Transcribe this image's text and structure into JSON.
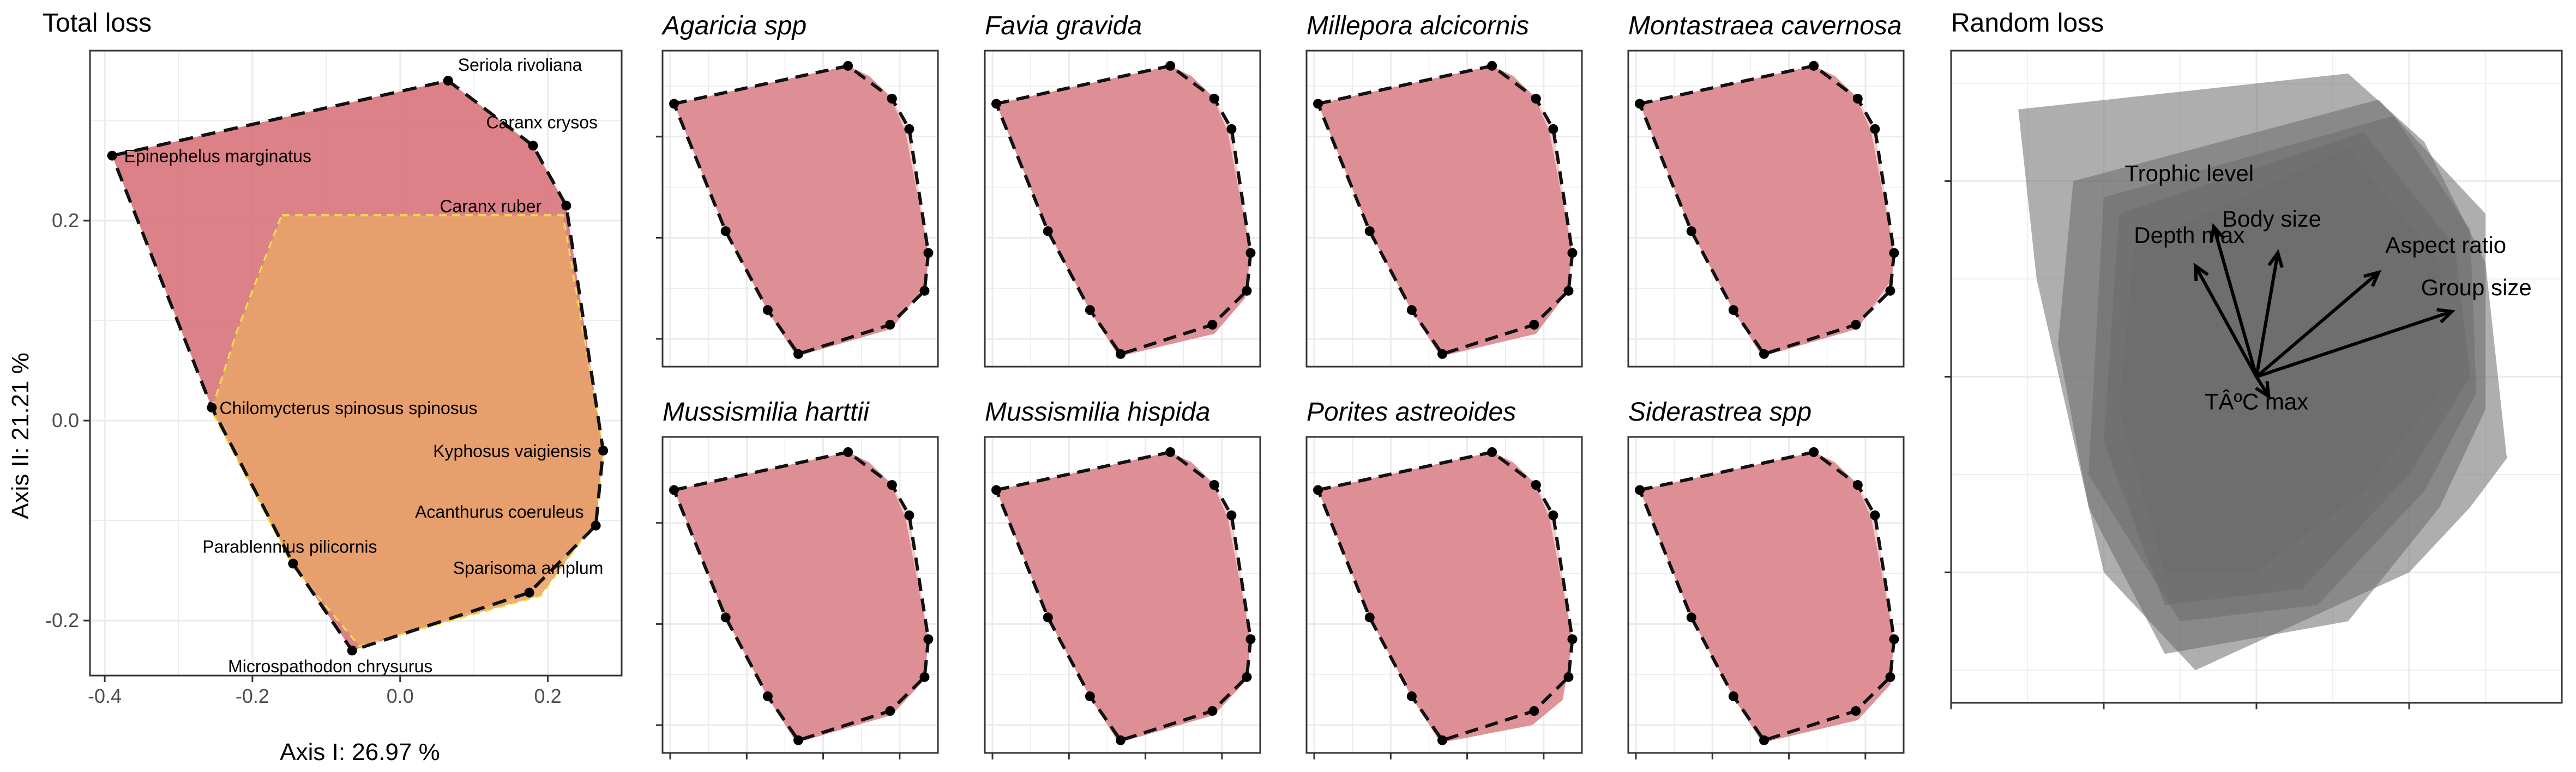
{
  "colors": {
    "total_fill": "#d9737b",
    "overlay_fill": "#e69a6e",
    "overlay_edge": "#f2e84a",
    "small_fill": "#db8a90",
    "random_fill": "#6b6b6b",
    "grid": "#ebebeb",
    "panel_border": "#333333"
  },
  "chart_data": [
    {
      "type": "scatter",
      "title": "Total loss",
      "xlabel": "Axis I: 26.97 %",
      "ylabel": "Axis II: 21.21 %",
      "xlim": [
        -0.42,
        0.3
      ],
      "ylim": [
        -0.255,
        0.37
      ],
      "x_ticks": [
        -0.4,
        -0.2,
        0.0,
        0.2
      ],
      "x_tick_labels": [
        "-0.4",
        "-0.2",
        "0.0",
        "0.2"
      ],
      "y_ticks": [
        -0.2,
        0.0,
        0.2
      ],
      "y_tick_labels": [
        "-0.2",
        "0.0",
        "0.2"
      ],
      "grid": true,
      "hull": [
        [
          -0.39,
          0.265
        ],
        [
          0.065,
          0.34
        ],
        [
          0.18,
          0.275
        ],
        [
          0.225,
          0.215
        ],
        [
          0.275,
          -0.03
        ],
        [
          0.265,
          -0.105
        ],
        [
          0.175,
          -0.172
        ],
        [
          -0.065,
          -0.23
        ],
        [
          -0.145,
          -0.143
        ],
        [
          -0.255,
          0.013
        ]
      ],
      "overlay_hull": [
        [
          -0.16,
          0.205
        ],
        [
          0.22,
          0.205
        ],
        [
          0.275,
          -0.03
        ],
        [
          0.265,
          -0.1
        ],
        [
          0.19,
          -0.175
        ],
        [
          -0.055,
          -0.225
        ],
        [
          -0.145,
          -0.145
        ],
        [
          -0.255,
          0.01
        ],
        [
          -0.22,
          0.09
        ]
      ],
      "species": [
        {
          "name": "Seriola rivoliana",
          "x": 0.065,
          "y": 0.34
        },
        {
          "name": "Caranx crysos",
          "x": 0.18,
          "y": 0.275
        },
        {
          "name": "Epinephelus marginatus",
          "x": -0.39,
          "y": 0.265
        },
        {
          "name": "Caranx ruber",
          "x": 0.225,
          "y": 0.215
        },
        {
          "name": "Chilomycterus spinosus spinosus",
          "x": -0.255,
          "y": 0.013
        },
        {
          "name": "Kyphosus vaigiensis",
          "x": 0.275,
          "y": -0.03
        },
        {
          "name": "Acanthurus coeruleus",
          "x": 0.265,
          "y": -0.105
        },
        {
          "name": "Parablennius pilicornis",
          "x": -0.145,
          "y": -0.143
        },
        {
          "name": "Sparisoma amplum",
          "x": 0.175,
          "y": -0.172
        },
        {
          "name": "Microspathodon chrysurus",
          "x": -0.065,
          "y": -0.23
        }
      ]
    },
    {
      "type": "scatter",
      "panels": [
        {
          "title": "Agaricia spp",
          "fill": [
            [
              -0.39,
              0.265
            ],
            [
              0.065,
              0.34
            ],
            [
              0.12,
              0.32
            ],
            [
              0.175,
              0.28
            ],
            [
              0.215,
              0.21
            ],
            [
              0.275,
              -0.03
            ],
            [
              0.27,
              -0.09
            ],
            [
              0.18,
              -0.18
            ],
            [
              -0.07,
              -0.235
            ],
            [
              -0.145,
              -0.145
            ],
            [
              -0.255,
              0.013
            ]
          ]
        },
        {
          "title": "Favia gravida",
          "fill": [
            [
              -0.39,
              0.265
            ],
            [
              0.065,
              0.34
            ],
            [
              0.12,
              0.32
            ],
            [
              0.175,
              0.28
            ],
            [
              0.215,
              0.21
            ],
            [
              0.275,
              -0.03
            ],
            [
              0.26,
              -0.12
            ],
            [
              0.18,
              -0.19
            ],
            [
              -0.07,
              -0.235
            ],
            [
              -0.145,
              -0.145
            ],
            [
              -0.255,
              0.013
            ]
          ]
        },
        {
          "title": "Millepora alcicornis",
          "fill": [
            [
              -0.39,
              0.265
            ],
            [
              0.065,
              0.34
            ],
            [
              0.12,
              0.32
            ],
            [
              0.175,
              0.28
            ],
            [
              0.215,
              0.21
            ],
            [
              0.275,
              -0.03
            ],
            [
              0.26,
              -0.11
            ],
            [
              0.18,
              -0.19
            ],
            [
              -0.07,
              -0.235
            ],
            [
              -0.145,
              -0.145
            ],
            [
              -0.255,
              0.013
            ]
          ]
        },
        {
          "title": "Montastraea cavernosa",
          "fill": [
            [
              -0.39,
              0.265
            ],
            [
              0.065,
              0.34
            ],
            [
              0.12,
              0.32
            ],
            [
              0.175,
              0.28
            ],
            [
              0.215,
              0.21
            ],
            [
              0.275,
              -0.03
            ],
            [
              0.27,
              -0.08
            ],
            [
              0.18,
              -0.18
            ],
            [
              -0.07,
              -0.235
            ],
            [
              -0.145,
              -0.145
            ],
            [
              -0.255,
              0.013
            ]
          ]
        },
        {
          "title": "Mussismilia harttii",
          "fill": [
            [
              -0.39,
              0.265
            ],
            [
              0.065,
              0.34
            ],
            [
              0.12,
              0.32
            ],
            [
              0.175,
              0.28
            ],
            [
              0.215,
              0.21
            ],
            [
              0.275,
              -0.03
            ],
            [
              0.265,
              -0.11
            ],
            [
              0.18,
              -0.18
            ],
            [
              -0.07,
              -0.235
            ],
            [
              -0.145,
              -0.145
            ],
            [
              -0.255,
              0.013
            ]
          ]
        },
        {
          "title": "Mussismilia hispida",
          "fill": [
            [
              -0.39,
              0.265
            ],
            [
              0.065,
              0.34
            ],
            [
              0.12,
              0.32
            ],
            [
              0.175,
              0.28
            ],
            [
              0.215,
              0.21
            ],
            [
              0.275,
              -0.03
            ],
            [
              0.265,
              -0.11
            ],
            [
              0.18,
              -0.18
            ],
            [
              -0.07,
              -0.235
            ],
            [
              -0.145,
              -0.145
            ],
            [
              -0.255,
              0.013
            ]
          ]
        },
        {
          "title": "Porites astreoides",
          "fill": [
            [
              -0.39,
              0.265
            ],
            [
              0.065,
              0.34
            ],
            [
              0.12,
              0.32
            ],
            [
              0.175,
              0.28
            ],
            [
              0.215,
              0.21
            ],
            [
              0.275,
              -0.03
            ],
            [
              0.25,
              -0.15
            ],
            [
              0.17,
              -0.2
            ],
            [
              -0.07,
              -0.235
            ],
            [
              -0.145,
              -0.145
            ],
            [
              -0.255,
              0.013
            ]
          ]
        },
        {
          "title": "Siderastrea spp",
          "fill": [
            [
              -0.39,
              0.265
            ],
            [
              0.065,
              0.34
            ],
            [
              0.12,
              0.32
            ],
            [
              0.175,
              0.28
            ],
            [
              0.215,
              0.21
            ],
            [
              0.275,
              -0.03
            ],
            [
              0.265,
              -0.12
            ],
            [
              0.18,
              -0.19
            ],
            [
              -0.07,
              -0.235
            ],
            [
              -0.145,
              -0.145
            ],
            [
              -0.255,
              0.013
            ]
          ]
        }
      ],
      "hull": [
        [
          -0.39,
          0.265
        ],
        [
          0.065,
          0.34
        ],
        [
          0.18,
          0.275
        ],
        [
          0.225,
          0.215
        ],
        [
          0.275,
          -0.03
        ],
        [
          0.265,
          -0.105
        ],
        [
          0.175,
          -0.172
        ],
        [
          -0.065,
          -0.23
        ],
        [
          -0.145,
          -0.143
        ],
        [
          -0.255,
          0.013
        ]
      ],
      "xlim": [
        -0.42,
        0.3
      ],
      "ylim": [
        -0.255,
        0.37
      ],
      "x_ticks": [
        -0.4,
        -0.2,
        0.0,
        0.2
      ],
      "y_ticks": [
        -0.2,
        0.0,
        0.2
      ],
      "grid": true
    },
    {
      "type": "scatter",
      "title": "Random loss",
      "grid": true,
      "xlim": [
        -1,
        1
      ],
      "ylim": [
        -1,
        1
      ],
      "x_ticks": [
        -1,
        -0.5,
        0,
        0.5
      ],
      "y_ticks": [
        -0.6,
        0,
        0.6
      ],
      "layers": [
        [
          [
            -0.78,
            0.82
          ],
          [
            0.3,
            0.93
          ],
          [
            0.55,
            0.72
          ],
          [
            0.75,
            0.35
          ],
          [
            0.82,
            -0.25
          ],
          [
            0.7,
            -0.4
          ],
          [
            0.5,
            -0.6
          ],
          [
            -0.2,
            -0.9
          ],
          [
            -0.5,
            -0.6
          ],
          [
            -0.72,
            0.3
          ]
        ],
        [
          [
            -0.6,
            0.6
          ],
          [
            0.4,
            0.85
          ],
          [
            0.75,
            0.5
          ],
          [
            0.75,
            -0.1
          ],
          [
            0.6,
            -0.4
          ],
          [
            0.3,
            -0.75
          ],
          [
            -0.3,
            -0.85
          ],
          [
            -0.55,
            -0.4
          ],
          [
            -0.65,
            0.1
          ]
        ],
        [
          [
            -0.5,
            0.55
          ],
          [
            0.45,
            0.8
          ],
          [
            0.7,
            0.45
          ],
          [
            0.72,
            -0.05
          ],
          [
            0.55,
            -0.35
          ],
          [
            0.2,
            -0.7
          ],
          [
            -0.25,
            -0.75
          ],
          [
            -0.55,
            -0.3
          ]
        ],
        [
          [
            -0.45,
            0.5
          ],
          [
            0.35,
            0.75
          ],
          [
            0.65,
            0.4
          ],
          [
            0.7,
            0.0
          ],
          [
            0.5,
            -0.3
          ],
          [
            0.15,
            -0.65
          ],
          [
            -0.3,
            -0.7
          ],
          [
            -0.5,
            -0.2
          ]
        ],
        [
          [
            -0.4,
            0.4
          ],
          [
            0.3,
            0.7
          ],
          [
            0.6,
            0.35
          ],
          [
            0.6,
            -0.05
          ],
          [
            0.35,
            -0.35
          ],
          [
            0.0,
            -0.6
          ],
          [
            -0.3,
            -0.6
          ],
          [
            -0.45,
            -0.1
          ]
        ]
      ],
      "origin": [
        0.0,
        0.0
      ],
      "arrows": [
        {
          "name": "Trophic level",
          "x": -0.14,
          "y": 0.46,
          "lx": -0.22,
          "ly": 0.6
        },
        {
          "name": "Depth max",
          "x": -0.2,
          "y": 0.34,
          "lx": -0.22,
          "ly": 0.41
        },
        {
          "name": "Body size",
          "x": 0.07,
          "y": 0.38,
          "lx": 0.05,
          "ly": 0.46
        },
        {
          "name": "Aspect ratio",
          "x": 0.4,
          "y": 0.32,
          "lx": 0.62,
          "ly": 0.38
        },
        {
          "name": "Group size",
          "x": 0.64,
          "y": 0.2,
          "lx": 0.72,
          "ly": 0.25
        },
        {
          "name": "TÂºC max",
          "x": 0.04,
          "y": -0.06,
          "lx": 0.0,
          "ly": -0.1
        }
      ]
    }
  ]
}
